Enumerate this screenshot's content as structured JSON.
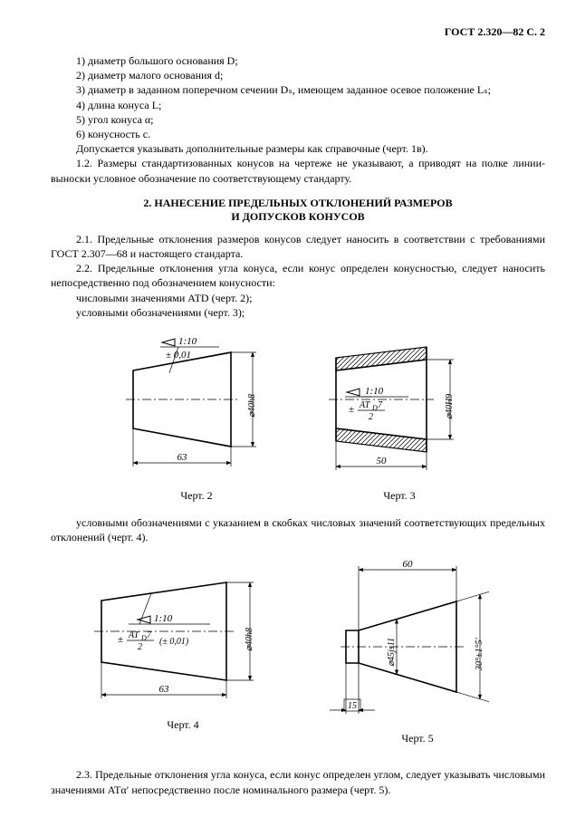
{
  "header": {
    "title": "ГОСТ 2.320—82 С. 2"
  },
  "list": {
    "i1": "1) диаметр большого основания D;",
    "i2": "2) диаметр малого основания d;",
    "i3": "3) диаметр в заданном поперечном сечении Dₛ, имеющем заданное осевое положение Lₛ;",
    "i4": "4) длина конуса L;",
    "i5": "5) угол конуса α;",
    "i6": "6) конусность с."
  },
  "p1": "Допускается указывать дополнительные размеры как справочные (черт. 1в).",
  "p2": "1.2. Размеры стандартизованных конусов на чертеже не указывают, а приводят на полке линии-выноски условное обозначение по соответствующему стандарту.",
  "sectionTitle1": "2. НАНЕСЕНИЕ ПРЕДЕЛЬНЫХ ОТКЛОНЕНИЙ РАЗМЕРОВ",
  "sectionTitle2": "И ДОПУСКОВ КОНУСОВ",
  "p3": "2.1. Предельные отклонения размеров конусов следует наносить в соответствии с требованиями ГОСТ 2.307—68 и настоящего стандарта.",
  "p4": "2.2. Предельные отклонения угла конуса, если конус определен конусностью, следует наносить непосредственно под обозначением конусности:",
  "p5": "числовыми значениями ATD (черт. 2);",
  "p6": "условными обозначениями (черт. 3);",
  "p7": "условными обозначениями с указанием в скобках числовых значений соответствующих предельных отклонений (черт. 4).",
  "p8": "2.3. Предельные отклонения угла конуса, если конус определен углом, следует указывать числовыми значениями  ATα′ непосредственно после номинального размера (черт. 5).",
  "fig2": {
    "caption": "Черт. 2",
    "taper": "1:10",
    "tol": "± 0,01",
    "length": "63",
    "diameter": "⌀40h8"
  },
  "fig3": {
    "caption": "Черт. 3",
    "taper": "1:10",
    "tol": "± ATD7 / 2",
    "length": "50",
    "diameter": "⌀40H9"
  },
  "fig4": {
    "caption": "Черт. 4",
    "taper": "1:10",
    "tol": "± ATD7 / 2 (± 0,01)",
    "length": "63",
    "diameter": "⌀40h8"
  },
  "fig5": {
    "caption": "Черт. 5",
    "length": "60",
    "diameter": "⌀45js11",
    "angle": "30°±1°5′",
    "small": "15"
  },
  "style": {
    "stroke": "#000000",
    "strokeWidth": 1.2,
    "thinStroke": 0.7,
    "dashCenter": "10 3 2 3",
    "hatchSpacing": 5,
    "fontSize": 11,
    "fontSizeSmall": 10,
    "fontFamily": "Times New Roman, serif",
    "arrowSize": 5
  }
}
